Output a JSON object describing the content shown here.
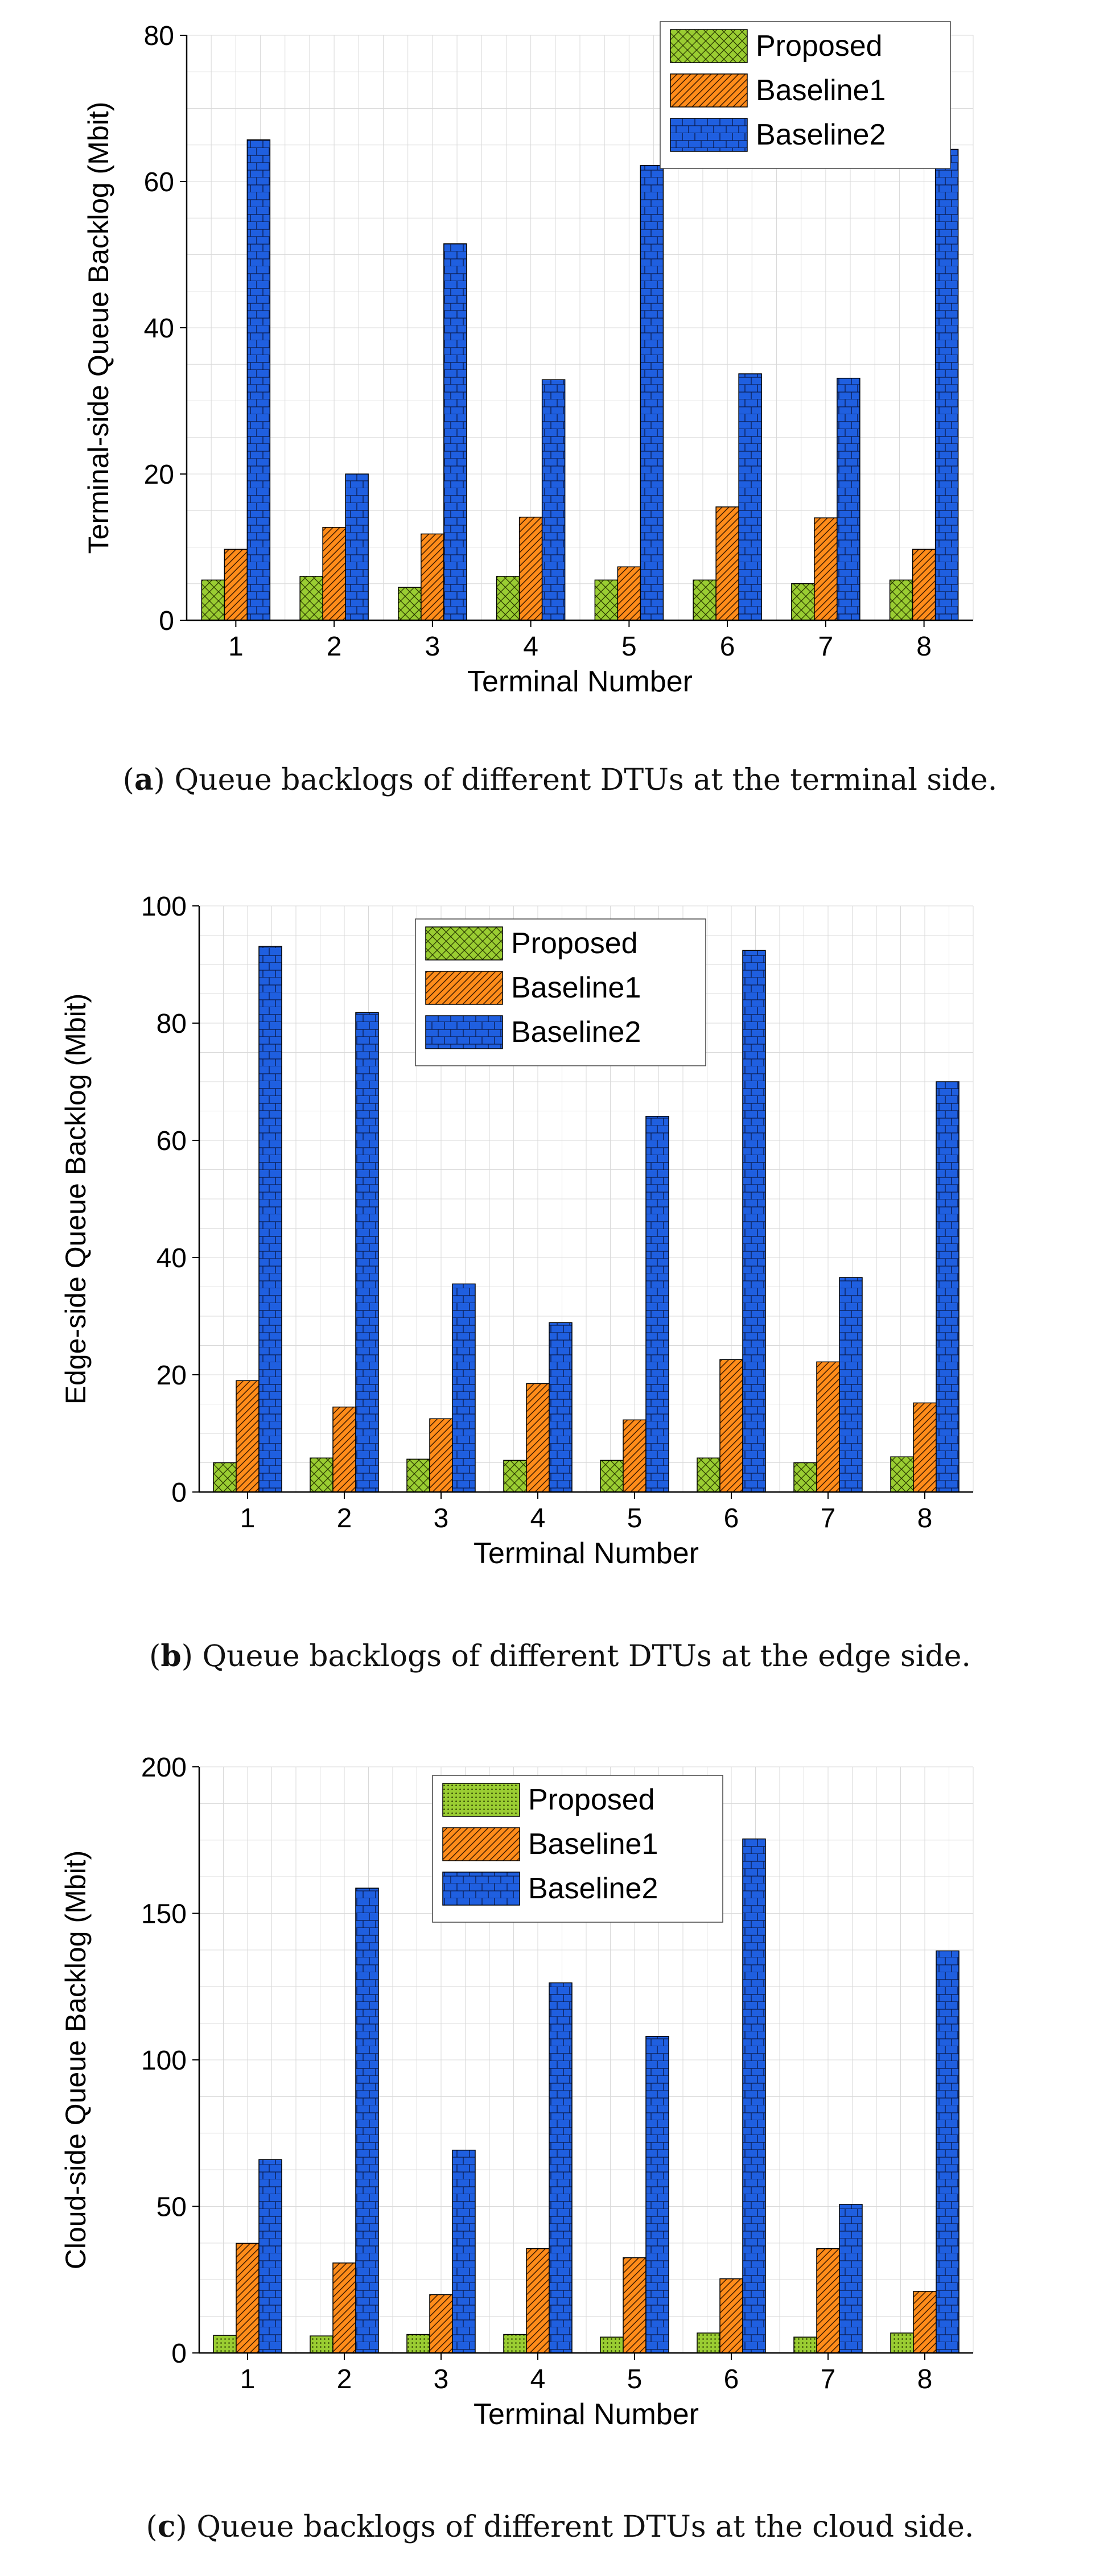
{
  "figure": {
    "captions": [
      {
        "letter": "a",
        "text": " Queue backlogs of different DTUs at the terminal side."
      },
      {
        "letter": "b",
        "text": " Queue backlogs of different DTUs at the edge side."
      },
      {
        "letter": "c",
        "text": " Queue backlogs of different DTUs at the cloud side."
      }
    ]
  },
  "colors": {
    "proposed": "#9acd32",
    "baseline1": "#ff8c1a",
    "baseline2": "#1f5fe0",
    "grid": "#d9d9d9",
    "axis": "#000000"
  },
  "chart_data": [
    {
      "type": "bar",
      "xlabel": "Terminal Number",
      "ylabel": "Terminal-side Queue Backlog (Mbit)",
      "categories": [
        "1",
        "2",
        "3",
        "4",
        "5",
        "6",
        "7",
        "8"
      ],
      "ylim": [
        0,
        80
      ],
      "yticks": [
        0,
        20,
        40,
        60,
        80
      ],
      "grid": true,
      "legend_position": "top-right",
      "series": [
        {
          "name": "Proposed",
          "pattern": "crosshatch",
          "values": [
            5.5,
            6.0,
            4.5,
            6.0,
            5.5,
            5.5,
            5.0,
            5.5
          ]
        },
        {
          "name": "Baseline1",
          "pattern": "diagonal",
          "values": [
            9.7,
            12.7,
            11.8,
            14.1,
            7.3,
            15.5,
            14.0,
            9.7
          ]
        },
        {
          "name": "Baseline2",
          "pattern": "brick",
          "values": [
            65.7,
            20.0,
            51.5,
            32.9,
            62.2,
            33.7,
            33.1,
            64.4
          ]
        }
      ]
    },
    {
      "type": "bar",
      "xlabel": "Terminal Number",
      "ylabel": "Edge-side Queue Backlog (Mbit)",
      "categories": [
        "1",
        "2",
        "3",
        "4",
        "5",
        "6",
        "7",
        "8"
      ],
      "ylim": [
        0,
        100
      ],
      "yticks": [
        0,
        20,
        40,
        60,
        80,
        100
      ],
      "grid": true,
      "legend_position": "top-center",
      "series": [
        {
          "name": "Proposed",
          "pattern": "crosshatch",
          "values": [
            5.0,
            5.8,
            5.6,
            5.4,
            5.4,
            5.8,
            5.0,
            6.0
          ]
        },
        {
          "name": "Baseline1",
          "pattern": "diagonal",
          "values": [
            19.0,
            14.5,
            12.5,
            18.5,
            12.3,
            22.6,
            22.2,
            15.2
          ]
        },
        {
          "name": "Baseline2",
          "pattern": "brick",
          "values": [
            93.1,
            81.8,
            35.5,
            28.9,
            64.1,
            92.4,
            36.6,
            70.0
          ]
        }
      ]
    },
    {
      "type": "bar",
      "xlabel": "Terminal Number",
      "ylabel": "Cloud-side Queue Backlog (Mbit)",
      "categories": [
        "1",
        "2",
        "3",
        "4",
        "5",
        "6",
        "7",
        "8"
      ],
      "ylim": [
        0,
        200
      ],
      "yticks": [
        0,
        50,
        100,
        150,
        200
      ],
      "grid": true,
      "legend_position": "top-center",
      "series": [
        {
          "name": "Proposed",
          "pattern": "dots",
          "values": [
            6.0,
            5.8,
            6.3,
            6.3,
            5.4,
            6.8,
            5.4,
            6.8
          ]
        },
        {
          "name": "Baseline1",
          "pattern": "diagonal",
          "values": [
            37.4,
            30.7,
            19.9,
            35.6,
            32.5,
            25.3,
            35.6,
            21.0
          ]
        },
        {
          "name": "Baseline2",
          "pattern": "brick",
          "values": [
            66.0,
            158.6,
            69.2,
            126.3,
            108.0,
            175.4,
            50.7,
            137.2
          ]
        }
      ]
    }
  ]
}
